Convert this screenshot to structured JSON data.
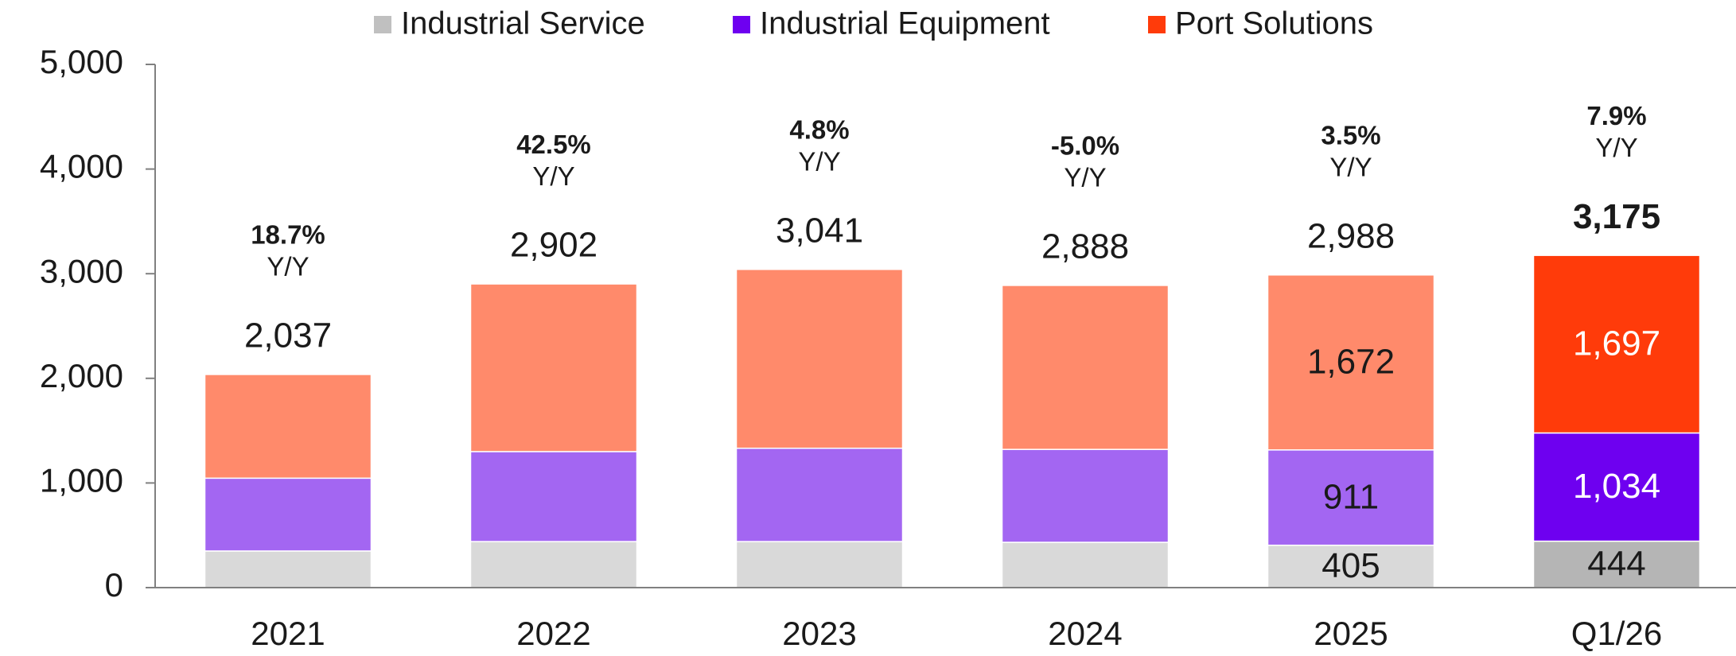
{
  "chart_data": {
    "type": "stacked_bar",
    "categories": [
      "2021",
      "2022",
      "2023",
      "2024",
      "2025",
      "Q1/26"
    ],
    "series": [
      {
        "name": "Industrial Service",
        "color": "#c0c0c0",
        "colors": [
          "#d9d9d9",
          "#d9d9d9",
          "#d9d9d9",
          "#d9d9d9",
          "#d9d9d9",
          "#b5b5b5"
        ],
        "values": [
          350,
          440,
          440,
          433,
          405,
          444
        ],
        "value_labels": [
          null,
          null,
          null,
          null,
          "405",
          "444"
        ]
      },
      {
        "name": "Industrial Equipment",
        "color": "#6e00f0",
        "colors": [
          "#a366f2",
          "#a366f2",
          "#a366f2",
          "#a366f2",
          "#a366f2",
          "#6e00f0"
        ],
        "values": [
          696,
          860,
          892,
          888,
          911,
          1034
        ],
        "value_labels": [
          null,
          null,
          null,
          null,
          "911",
          "1,034"
        ]
      },
      {
        "name": "Port Solutions",
        "color": "#ff3b0a",
        "colors": [
          "#ff8a6b",
          "#ff8a6b",
          "#ff8a6b",
          "#ff8a6b",
          "#ff8a6b",
          "#ff3b0a"
        ],
        "values": [
          991,
          1602,
          1709,
          1567,
          1672,
          1697
        ],
        "value_labels": [
          null,
          null,
          null,
          null,
          "1,672",
          "1,697"
        ]
      }
    ],
    "totals": [
      2037,
      2902,
      3041,
      2888,
      2988,
      3175
    ],
    "total_labels": [
      "2,037",
      "2,902",
      "3,041",
      "2,888",
      "2,988",
      "3,175"
    ],
    "annotations": [
      "18.7%",
      "42.5%",
      "4.8%",
      "-5.0%",
      "3.5%",
      "7.9%"
    ],
    "annotation_unit": "Y/Y",
    "ylim": [
      0,
      5000
    ],
    "yticks": [
      0,
      {
        "value": 1000,
        "label": "1,000"
      },
      {
        "value": 2000,
        "label": "2,000"
      },
      {
        "value": 3000,
        "label": "3,000"
      },
      {
        "value": 4000,
        "label": "4,000"
      },
      {
        "value": 5000,
        "label": "5,000"
      }
    ],
    "legend": "top"
  }
}
